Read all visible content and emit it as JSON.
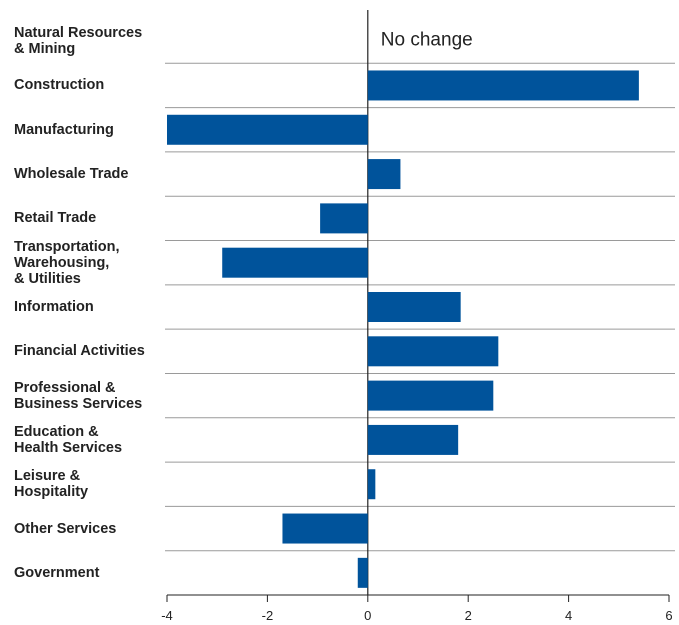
{
  "chart_data": {
    "type": "bar",
    "orientation": "horizontal",
    "annotation": "No change",
    "categories": [
      "Natural Resources\n& Mining",
      "Construction",
      "Manufacturing",
      "Wholesale Trade",
      "Retail Trade",
      "Transportation,\nWarehousing,\n& Utilities",
      "Information",
      "Financial Activities",
      "Professional &\nBusiness Services",
      "Education &\nHealth Services",
      "Leisure &\nHospitality",
      "Other Services",
      "Government"
    ],
    "values": [
      0,
      5.4,
      -4.0,
      0.65,
      -0.95,
      -2.9,
      1.85,
      2.6,
      2.5,
      1.8,
      0.15,
      -1.7,
      -0.2
    ],
    "color": "#00539b",
    "xlim": [
      -4,
      6
    ],
    "xticks": [
      -4,
      -2,
      0,
      2,
      4,
      6
    ]
  }
}
